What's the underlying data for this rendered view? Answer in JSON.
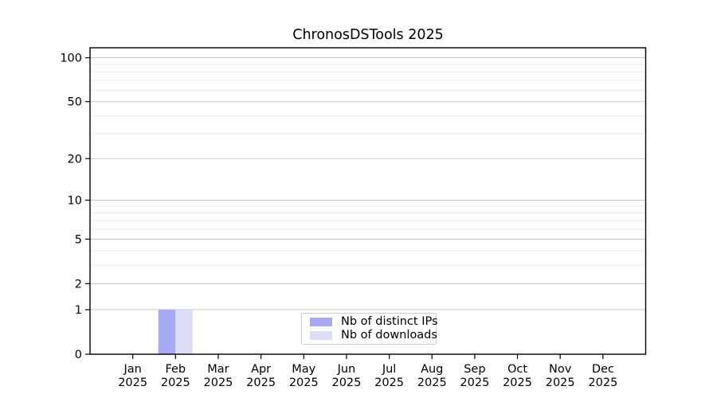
{
  "title": "ChronosDSTools 2025",
  "chart_data": {
    "type": "bar",
    "title": "ChronosDSTools 2025",
    "categories": [
      "Jan 2025",
      "Feb 2025",
      "Mar 2025",
      "Apr 2025",
      "May 2025",
      "Jun 2025",
      "Jul 2025",
      "Aug 2025",
      "Sep 2025",
      "Oct 2025",
      "Nov 2025",
      "Dec 2025"
    ],
    "series": [
      {
        "name": "Nb of distinct IPs",
        "color": "#a6a9f3",
        "values": [
          0,
          1,
          0,
          0,
          0,
          0,
          0,
          0,
          0,
          0,
          0,
          0
        ]
      },
      {
        "name": "Nb of downloads",
        "color": "#dcdef8",
        "values": [
          0,
          1,
          0,
          0,
          0,
          0,
          0,
          0,
          0,
          0,
          0,
          0
        ]
      }
    ],
    "yscale": "log1p",
    "ylim": [
      0,
      117
    ],
    "yticks": [
      0,
      1,
      2,
      5,
      10,
      20,
      50,
      100
    ],
    "yticks_minor": [
      3,
      4,
      6,
      7,
      8,
      9,
      30,
      40,
      60,
      70,
      80,
      90
    ],
    "xlabel": "",
    "ylabel": "",
    "grid": "horizontal",
    "legend": {
      "position": "lower-center",
      "entries": [
        "Nb of distinct IPs",
        "Nb of downloads"
      ]
    },
    "colors": {
      "background": "#ffffff",
      "axis": "#000000",
      "text": "#000000",
      "major_grid": "#c9c9c9",
      "minor_grid": "#eaeaea"
    }
  }
}
